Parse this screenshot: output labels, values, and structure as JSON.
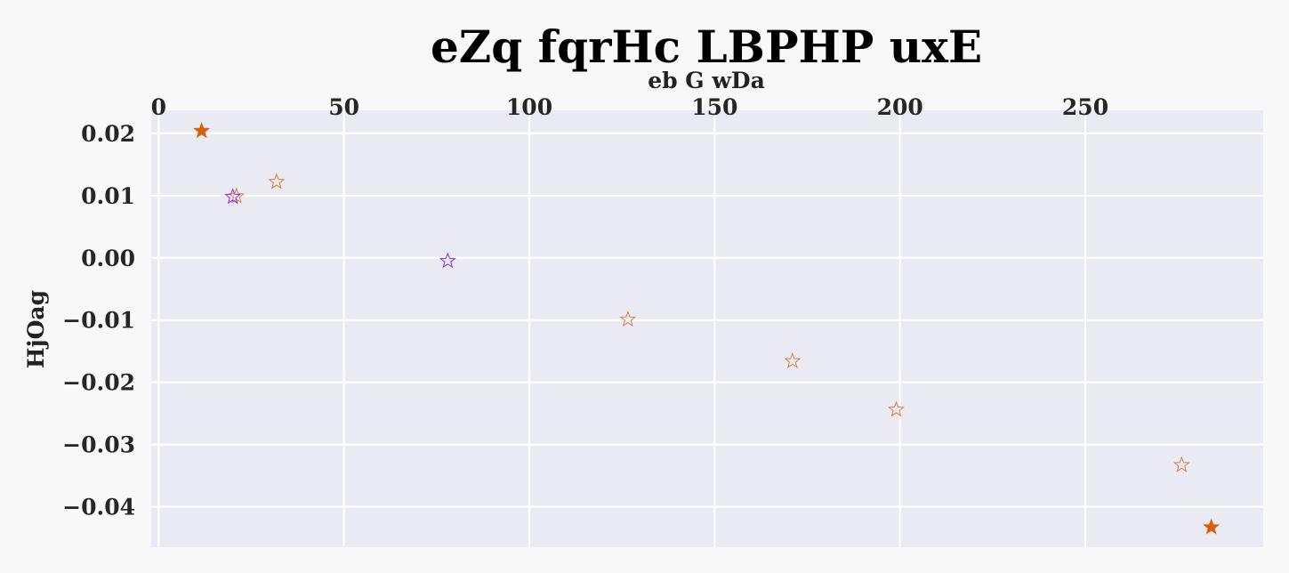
{
  "chart_data": {
    "type": "scatter",
    "title": "eZq fqrHc LBPHP uxE",
    "xlabel": "eb G wDa",
    "ylabel": "HjOag",
    "x_axis_position": "top",
    "xlim": [
      -2,
      298
    ],
    "ylim": [
      -0.0465,
      0.0237
    ],
    "xticks": [
      0,
      50,
      100,
      150,
      200,
      250
    ],
    "xtick_labels": [
      "0",
      "50",
      "100",
      "150",
      "200",
      "250"
    ],
    "yticks": [
      0.02,
      0.01,
      0.0,
      -0.01,
      -0.02,
      -0.03,
      -0.04
    ],
    "ytick_labels": [
      "0.02",
      "0.01",
      "0.00",
      "−0.01",
      "−0.02",
      "−0.03",
      "−0.04"
    ],
    "grid": true,
    "series": [
      {
        "marker": "star-filled",
        "color": "#d95f0e",
        "points": [
          {
            "x": 11.6,
            "y": 0.0204
          },
          {
            "x": 284,
            "y": -0.0433
          }
        ]
      },
      {
        "marker": "star-open",
        "color": "#e07b45",
        "points": [
          {
            "x": 21,
            "y": 0.0099
          },
          {
            "x": 31.8,
            "y": 0.0122
          },
          {
            "x": 126.6,
            "y": -0.0099
          },
          {
            "x": 171,
            "y": -0.0166
          },
          {
            "x": 199,
            "y": -0.0244
          },
          {
            "x": 276,
            "y": -0.0333
          }
        ]
      },
      {
        "marker": "star-open",
        "color": "#8a2be2",
        "points": [
          {
            "x": 20,
            "y": 0.0098
          },
          {
            "x": 78,
            "y": -0.0005
          }
        ]
      }
    ],
    "colors": {
      "plot_background": "#eaeaf2",
      "page_background": "#f8f8f8",
      "grid": "#ffffff"
    }
  }
}
